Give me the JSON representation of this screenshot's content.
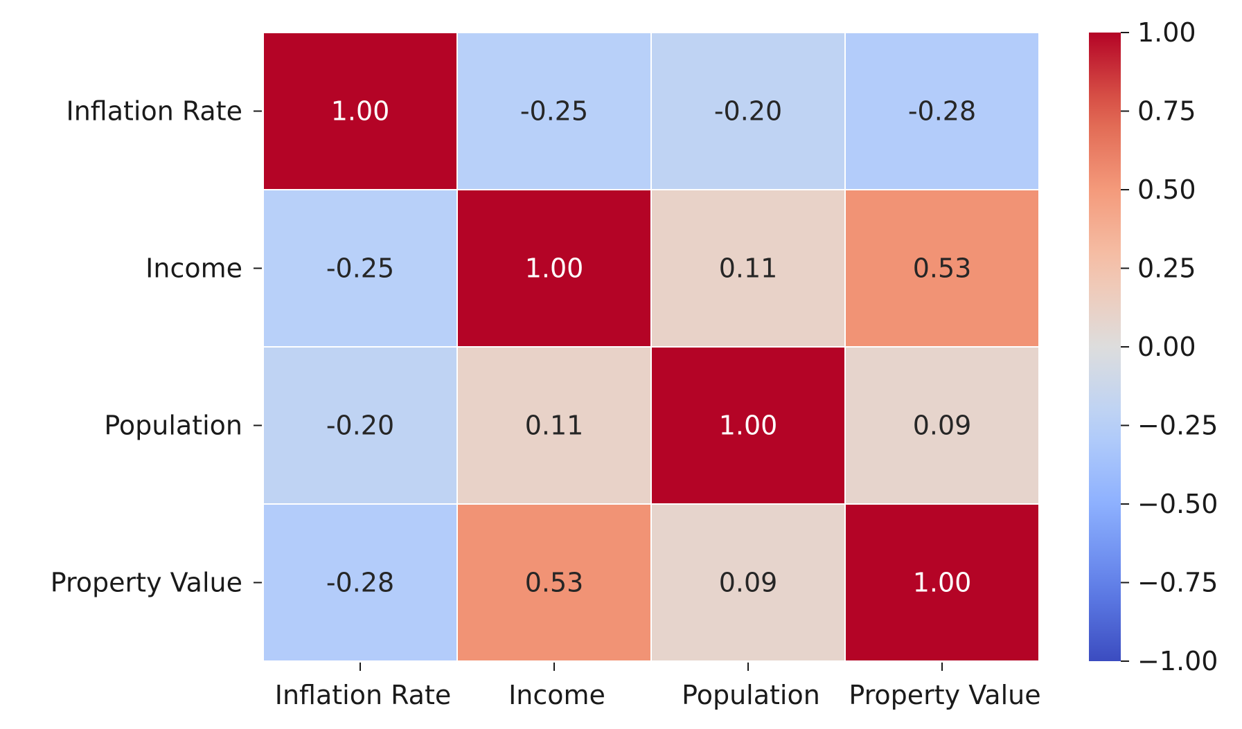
{
  "chart_data": {
    "type": "heatmap",
    "title": "",
    "xlabel": "",
    "ylabel": "",
    "x_categories": [
      "Inflation Rate",
      "Income",
      "Population",
      "Property Value"
    ],
    "y_categories": [
      "Inflation Rate",
      "Income",
      "Population",
      "Property Value"
    ],
    "values": [
      [
        1.0,
        -0.25,
        -0.2,
        -0.28
      ],
      [
        -0.25,
        1.0,
        0.11,
        0.53
      ],
      [
        -0.2,
        0.11,
        1.0,
        0.09
      ],
      [
        -0.28,
        0.53,
        0.09,
        1.0
      ]
    ],
    "value_labels": [
      [
        "1.00",
        "-0.25",
        "-0.20",
        "-0.28"
      ],
      [
        "-0.25",
        "1.00",
        "0.11",
        "0.53"
      ],
      [
        "-0.20",
        "0.11",
        "1.00",
        "0.09"
      ],
      [
        "-0.28",
        "0.53",
        "0.09",
        "1.00"
      ]
    ],
    "colormap": "coolwarm",
    "vmin": -1.0,
    "vmax": 1.0,
    "colorbar_ticks": [
      1.0,
      0.75,
      0.5,
      0.25,
      0.0,
      -0.25,
      -0.5,
      -0.75,
      -1.0
    ],
    "colorbar_tick_labels": [
      "1.00",
      "0.75",
      "0.50",
      "0.25",
      "0.00",
      "−0.25",
      "−0.50",
      "−0.75",
      "−1.00"
    ],
    "grid_line_color": "#ffffff",
    "dark_text_color": "#262626",
    "light_text_color": "#ffffff"
  }
}
